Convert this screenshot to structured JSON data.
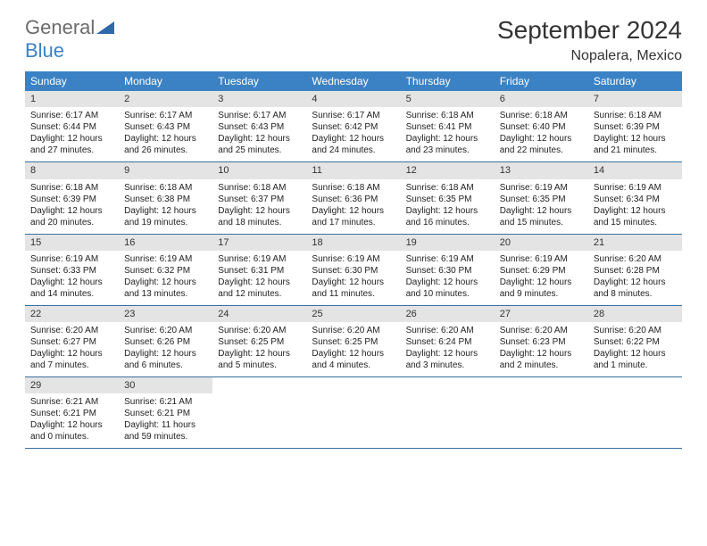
{
  "logo": {
    "word1": "General",
    "word2": "Blue"
  },
  "title": "September 2024",
  "location": "Nopalera, Mexico",
  "colors": {
    "header_bg": "#3b82c4",
    "header_text": "#ffffff",
    "daynum_bg": "#e4e4e4",
    "row_border": "#3b6fa0",
    "body_text": "#222222",
    "logo_gray": "#6b6b6b",
    "logo_blue": "#3b82c4"
  },
  "weekdays": [
    "Sunday",
    "Monday",
    "Tuesday",
    "Wednesday",
    "Thursday",
    "Friday",
    "Saturday"
  ],
  "weeks": [
    [
      {
        "n": "1",
        "sr": "Sunrise: 6:17 AM",
        "ss": "Sunset: 6:44 PM",
        "d1": "Daylight: 12 hours",
        "d2": "and 27 minutes."
      },
      {
        "n": "2",
        "sr": "Sunrise: 6:17 AM",
        "ss": "Sunset: 6:43 PM",
        "d1": "Daylight: 12 hours",
        "d2": "and 26 minutes."
      },
      {
        "n": "3",
        "sr": "Sunrise: 6:17 AM",
        "ss": "Sunset: 6:43 PM",
        "d1": "Daylight: 12 hours",
        "d2": "and 25 minutes."
      },
      {
        "n": "4",
        "sr": "Sunrise: 6:17 AM",
        "ss": "Sunset: 6:42 PM",
        "d1": "Daylight: 12 hours",
        "d2": "and 24 minutes."
      },
      {
        "n": "5",
        "sr": "Sunrise: 6:18 AM",
        "ss": "Sunset: 6:41 PM",
        "d1": "Daylight: 12 hours",
        "d2": "and 23 minutes."
      },
      {
        "n": "6",
        "sr": "Sunrise: 6:18 AM",
        "ss": "Sunset: 6:40 PM",
        "d1": "Daylight: 12 hours",
        "d2": "and 22 minutes."
      },
      {
        "n": "7",
        "sr": "Sunrise: 6:18 AM",
        "ss": "Sunset: 6:39 PM",
        "d1": "Daylight: 12 hours",
        "d2": "and 21 minutes."
      }
    ],
    [
      {
        "n": "8",
        "sr": "Sunrise: 6:18 AM",
        "ss": "Sunset: 6:39 PM",
        "d1": "Daylight: 12 hours",
        "d2": "and 20 minutes."
      },
      {
        "n": "9",
        "sr": "Sunrise: 6:18 AM",
        "ss": "Sunset: 6:38 PM",
        "d1": "Daylight: 12 hours",
        "d2": "and 19 minutes."
      },
      {
        "n": "10",
        "sr": "Sunrise: 6:18 AM",
        "ss": "Sunset: 6:37 PM",
        "d1": "Daylight: 12 hours",
        "d2": "and 18 minutes."
      },
      {
        "n": "11",
        "sr": "Sunrise: 6:18 AM",
        "ss": "Sunset: 6:36 PM",
        "d1": "Daylight: 12 hours",
        "d2": "and 17 minutes."
      },
      {
        "n": "12",
        "sr": "Sunrise: 6:18 AM",
        "ss": "Sunset: 6:35 PM",
        "d1": "Daylight: 12 hours",
        "d2": "and 16 minutes."
      },
      {
        "n": "13",
        "sr": "Sunrise: 6:19 AM",
        "ss": "Sunset: 6:35 PM",
        "d1": "Daylight: 12 hours",
        "d2": "and 15 minutes."
      },
      {
        "n": "14",
        "sr": "Sunrise: 6:19 AM",
        "ss": "Sunset: 6:34 PM",
        "d1": "Daylight: 12 hours",
        "d2": "and 15 minutes."
      }
    ],
    [
      {
        "n": "15",
        "sr": "Sunrise: 6:19 AM",
        "ss": "Sunset: 6:33 PM",
        "d1": "Daylight: 12 hours",
        "d2": "and 14 minutes."
      },
      {
        "n": "16",
        "sr": "Sunrise: 6:19 AM",
        "ss": "Sunset: 6:32 PM",
        "d1": "Daylight: 12 hours",
        "d2": "and 13 minutes."
      },
      {
        "n": "17",
        "sr": "Sunrise: 6:19 AM",
        "ss": "Sunset: 6:31 PM",
        "d1": "Daylight: 12 hours",
        "d2": "and 12 minutes."
      },
      {
        "n": "18",
        "sr": "Sunrise: 6:19 AM",
        "ss": "Sunset: 6:30 PM",
        "d1": "Daylight: 12 hours",
        "d2": "and 11 minutes."
      },
      {
        "n": "19",
        "sr": "Sunrise: 6:19 AM",
        "ss": "Sunset: 6:30 PM",
        "d1": "Daylight: 12 hours",
        "d2": "and 10 minutes."
      },
      {
        "n": "20",
        "sr": "Sunrise: 6:19 AM",
        "ss": "Sunset: 6:29 PM",
        "d1": "Daylight: 12 hours",
        "d2": "and 9 minutes."
      },
      {
        "n": "21",
        "sr": "Sunrise: 6:20 AM",
        "ss": "Sunset: 6:28 PM",
        "d1": "Daylight: 12 hours",
        "d2": "and 8 minutes."
      }
    ],
    [
      {
        "n": "22",
        "sr": "Sunrise: 6:20 AM",
        "ss": "Sunset: 6:27 PM",
        "d1": "Daylight: 12 hours",
        "d2": "and 7 minutes."
      },
      {
        "n": "23",
        "sr": "Sunrise: 6:20 AM",
        "ss": "Sunset: 6:26 PM",
        "d1": "Daylight: 12 hours",
        "d2": "and 6 minutes."
      },
      {
        "n": "24",
        "sr": "Sunrise: 6:20 AM",
        "ss": "Sunset: 6:25 PM",
        "d1": "Daylight: 12 hours",
        "d2": "and 5 minutes."
      },
      {
        "n": "25",
        "sr": "Sunrise: 6:20 AM",
        "ss": "Sunset: 6:25 PM",
        "d1": "Daylight: 12 hours",
        "d2": "and 4 minutes."
      },
      {
        "n": "26",
        "sr": "Sunrise: 6:20 AM",
        "ss": "Sunset: 6:24 PM",
        "d1": "Daylight: 12 hours",
        "d2": "and 3 minutes."
      },
      {
        "n": "27",
        "sr": "Sunrise: 6:20 AM",
        "ss": "Sunset: 6:23 PM",
        "d1": "Daylight: 12 hours",
        "d2": "and 2 minutes."
      },
      {
        "n": "28",
        "sr": "Sunrise: 6:20 AM",
        "ss": "Sunset: 6:22 PM",
        "d1": "Daylight: 12 hours",
        "d2": "and 1 minute."
      }
    ],
    [
      {
        "n": "29",
        "sr": "Sunrise: 6:21 AM",
        "ss": "Sunset: 6:21 PM",
        "d1": "Daylight: 12 hours",
        "d2": "and 0 minutes."
      },
      {
        "n": "30",
        "sr": "Sunrise: 6:21 AM",
        "ss": "Sunset: 6:21 PM",
        "d1": "Daylight: 11 hours",
        "d2": "and 59 minutes."
      },
      null,
      null,
      null,
      null,
      null
    ]
  ]
}
